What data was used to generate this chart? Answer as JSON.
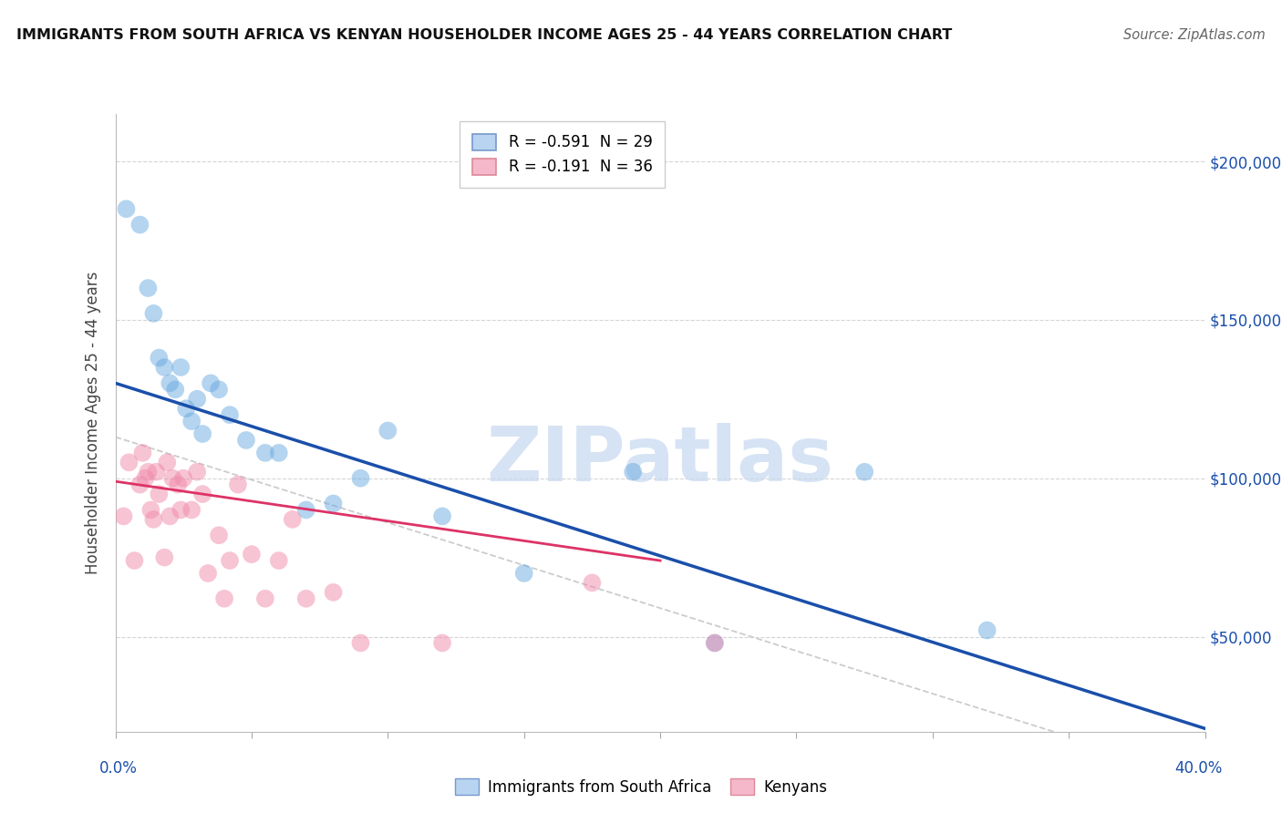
{
  "title": "IMMIGRANTS FROM SOUTH AFRICA VS KENYAN HOUSEHOLDER INCOME AGES 25 - 44 YEARS CORRELATION CHART",
  "source": "Source: ZipAtlas.com",
  "ylabel": "Householder Income Ages 25 - 44 years",
  "xlim": [
    0.0,
    0.4
  ],
  "ylim": [
    20000,
    215000
  ],
  "yticks": [
    50000,
    100000,
    150000,
    200000
  ],
  "ytick_labels": [
    "$50,000",
    "$100,000",
    "$150,000",
    "$200,000"
  ],
  "xticks": [
    0.0,
    0.05,
    0.1,
    0.15,
    0.2,
    0.25,
    0.3,
    0.35,
    0.4
  ],
  "legend1_label": "R = -0.591  N = 29",
  "legend2_label": "R = -0.191  N = 36",
  "legend1_fill": "#b8d4f0",
  "legend2_fill": "#f5b8ca",
  "legend_edge1": "#7799cc",
  "legend_edge2": "#dd8899",
  "blue_scatter_color": "#6aaae0",
  "pink_scatter_color": "#f08aaa",
  "blue_line_color": "#1a4faa",
  "pink_line_color": "#dd3366",
  "gray_dash_color": "#cccccc",
  "watermark_color": "#c5d8f0",
  "watermark_text": "ZIPatlas",
  "blue_scatter_x": [
    0.004,
    0.009,
    0.012,
    0.014,
    0.016,
    0.018,
    0.02,
    0.022,
    0.024,
    0.026,
    0.028,
    0.03,
    0.032,
    0.035,
    0.038,
    0.042,
    0.048,
    0.055,
    0.06,
    0.07,
    0.08,
    0.09,
    0.1,
    0.12,
    0.15,
    0.19,
    0.22,
    0.275,
    0.32
  ],
  "blue_scatter_y": [
    185000,
    180000,
    160000,
    152000,
    138000,
    135000,
    130000,
    128000,
    135000,
    122000,
    118000,
    125000,
    114000,
    130000,
    128000,
    120000,
    112000,
    108000,
    108000,
    90000,
    92000,
    100000,
    115000,
    88000,
    70000,
    102000,
    48000,
    102000,
    52000
  ],
  "pink_scatter_x": [
    0.003,
    0.005,
    0.007,
    0.009,
    0.01,
    0.011,
    0.012,
    0.013,
    0.014,
    0.015,
    0.016,
    0.018,
    0.019,
    0.02,
    0.021,
    0.023,
    0.024,
    0.025,
    0.028,
    0.03,
    0.032,
    0.034,
    0.038,
    0.04,
    0.042,
    0.045,
    0.05,
    0.055,
    0.06,
    0.065,
    0.07,
    0.08,
    0.09,
    0.12,
    0.175,
    0.22
  ],
  "pink_scatter_y": [
    88000,
    105000,
    74000,
    98000,
    108000,
    100000,
    102000,
    90000,
    87000,
    102000,
    95000,
    75000,
    105000,
    88000,
    100000,
    98000,
    90000,
    100000,
    90000,
    102000,
    95000,
    70000,
    82000,
    62000,
    74000,
    98000,
    76000,
    62000,
    74000,
    87000,
    62000,
    64000,
    48000,
    48000,
    67000,
    48000
  ],
  "blue_line_x": [
    0.0,
    0.4
  ],
  "blue_line_y": [
    130000,
    21000
  ],
  "pink_line_x": [
    0.0,
    0.2
  ],
  "pink_line_y": [
    99000,
    74000
  ],
  "gray_line_x": [
    0.0,
    0.4
  ],
  "gray_line_y": [
    113000,
    5000
  ],
  "bottom_legend_labels": [
    "Immigrants from South Africa",
    "Kenyans"
  ]
}
